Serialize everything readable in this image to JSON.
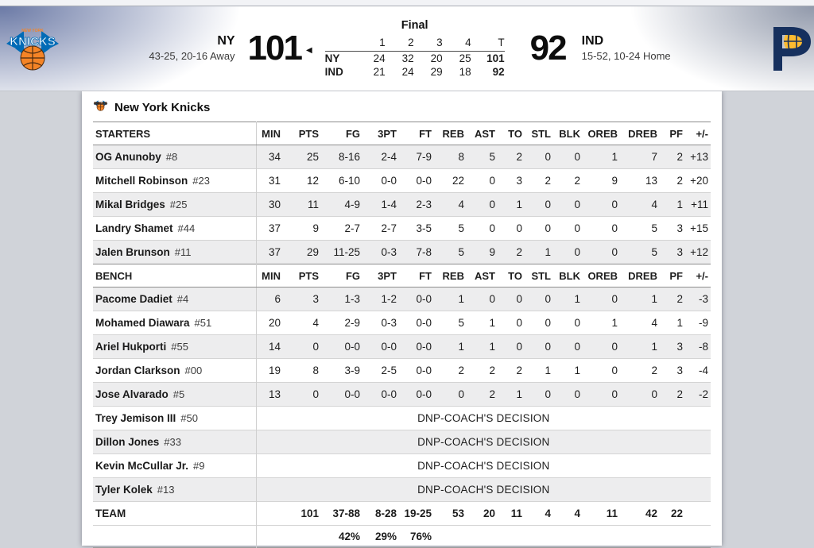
{
  "header": {
    "status": "Final",
    "away": {
      "abbr": "NY",
      "record": "43-25, 20-16 Away",
      "score": "101"
    },
    "home": {
      "abbr": "IND",
      "record": "15-52, 10-24 Home",
      "score": "92"
    },
    "winner_indicator": "◀",
    "linescore": {
      "columns": [
        "1",
        "2",
        "3",
        "4",
        "T"
      ],
      "rows": [
        {
          "team": "NY",
          "values": [
            "24",
            "32",
            "20",
            "25",
            "101"
          ]
        },
        {
          "team": "IND",
          "values": [
            "21",
            "24",
            "29",
            "18",
            "92"
          ]
        }
      ]
    }
  },
  "boxscore": {
    "team_name": "New York Knicks",
    "starters_label": "STARTERS",
    "bench_label": "BENCH",
    "team_label": "TEAM",
    "columns": [
      "MIN",
      "PTS",
      "FG",
      "3PT",
      "FT",
      "REB",
      "AST",
      "TO",
      "STL",
      "BLK",
      "OREB",
      "DREB",
      "PF",
      "+/-"
    ],
    "starters": [
      {
        "name": "OG Anunoby",
        "number": "#8",
        "stats": [
          "34",
          "25",
          "8-16",
          "2-4",
          "7-9",
          "8",
          "5",
          "2",
          "0",
          "0",
          "1",
          "7",
          "2",
          "+13"
        ]
      },
      {
        "name": "Mitchell Robinson",
        "number": "#23",
        "stats": [
          "31",
          "12",
          "6-10",
          "0-0",
          "0-0",
          "22",
          "0",
          "3",
          "2",
          "2",
          "9",
          "13",
          "2",
          "+20"
        ]
      },
      {
        "name": "Mikal Bridges",
        "number": "#25",
        "stats": [
          "30",
          "11",
          "4-9",
          "1-4",
          "2-3",
          "4",
          "0",
          "1",
          "0",
          "0",
          "0",
          "4",
          "1",
          "+11"
        ]
      },
      {
        "name": "Landry Shamet",
        "number": "#44",
        "stats": [
          "37",
          "9",
          "2-7",
          "2-7",
          "3-5",
          "5",
          "0",
          "0",
          "0",
          "0",
          "0",
          "5",
          "3",
          "+15"
        ]
      },
      {
        "name": "Jalen Brunson",
        "number": "#11",
        "stats": [
          "37",
          "29",
          "11-25",
          "0-3",
          "7-8",
          "5",
          "9",
          "2",
          "1",
          "0",
          "0",
          "5",
          "3",
          "+12"
        ]
      }
    ],
    "bench": [
      {
        "name": "Pacome Dadiet",
        "number": "#4",
        "stats": [
          "6",
          "3",
          "1-3",
          "1-2",
          "0-0",
          "1",
          "0",
          "0",
          "0",
          "1",
          "0",
          "1",
          "2",
          "-3"
        ]
      },
      {
        "name": "Mohamed Diawara",
        "number": "#51",
        "stats": [
          "20",
          "4",
          "2-9",
          "0-3",
          "0-0",
          "5",
          "1",
          "0",
          "0",
          "0",
          "1",
          "4",
          "1",
          "-9"
        ]
      },
      {
        "name": "Ariel Hukporti",
        "number": "#55",
        "stats": [
          "14",
          "0",
          "0-0",
          "0-0",
          "0-0",
          "1",
          "1",
          "0",
          "0",
          "0",
          "0",
          "1",
          "3",
          "-8"
        ]
      },
      {
        "name": "Jordan Clarkson",
        "number": "#00",
        "stats": [
          "19",
          "8",
          "3-9",
          "2-5",
          "0-0",
          "2",
          "2",
          "2",
          "1",
          "1",
          "0",
          "2",
          "3",
          "-4"
        ]
      },
      {
        "name": "Jose Alvarado",
        "number": "#5",
        "stats": [
          "13",
          "0",
          "0-0",
          "0-0",
          "0-0",
          "0",
          "2",
          "1",
          "0",
          "0",
          "0",
          "0",
          "2",
          "-2"
        ]
      }
    ],
    "dnp": [
      {
        "name": "Trey Jemison III",
        "number": "#50",
        "note": "DNP-COACH'S DECISION"
      },
      {
        "name": "Dillon Jones",
        "number": "#33",
        "note": "DNP-COACH'S DECISION"
      },
      {
        "name": "Kevin McCullar Jr.",
        "number": "#9",
        "note": "DNP-COACH'S DECISION"
      },
      {
        "name": "Tyler Kolek",
        "number": "#13",
        "note": "DNP-COACH'S DECISION"
      }
    ],
    "totals": [
      "",
      "101",
      "37-88",
      "8-28",
      "19-25",
      "53",
      "20",
      "11",
      "4",
      "4",
      "11",
      "42",
      "22",
      ""
    ],
    "percentages": [
      "",
      "",
      "42%",
      "29%",
      "76%",
      "",
      "",
      "",
      "",
      "",
      "",
      "",
      "",
      ""
    ]
  },
  "colors": {
    "knicks_blue": "#006BB6",
    "knicks_orange": "#F58426",
    "pacers_navy": "#16305e",
    "pacers_gold": "#FDBB30",
    "page_bg": "#d0d3d9"
  }
}
